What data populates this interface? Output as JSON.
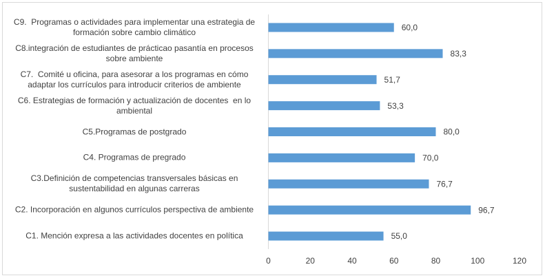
{
  "chart_data": {
    "type": "barh",
    "categories": [
      "C9.  Programas o actividades para implementar una estrategia de formación sobre cambio climático",
      "C8.integración de estudiantes de prácticao pasantía en procesos  sobre ambiente",
      "C7.  Comité u oficina, para asesorar a los programas en cómo adaptar los currículos para introducir criterios de ambiente",
      "C6. Estrategias de formación y actualización de docentes  en lo ambiental",
      "C5.Programas de postgrado",
      "C4. Programas de pregrado",
      "C3.Definición de competencias transversales básicas en sustentabilidad en algunas carreras",
      "C2. Incorporación en algunos currículos perspectiva de ambiente",
      "C1. Mención expresa a las actividades docentes en política"
    ],
    "values": [
      60,
      83.3,
      51.7,
      53.3,
      80,
      70,
      76.7,
      96.7,
      55
    ],
    "value_labels": [
      "60,0",
      "83,3",
      "51,7",
      "53,3",
      "80,0",
      "70,0",
      "76,7",
      "96,7",
      "55,0"
    ],
    "color": "#5b9bd5",
    "xlim": [
      0,
      120
    ],
    "xticks": [
      0,
      20,
      40,
      60,
      80,
      100,
      120
    ],
    "grid": false
  }
}
